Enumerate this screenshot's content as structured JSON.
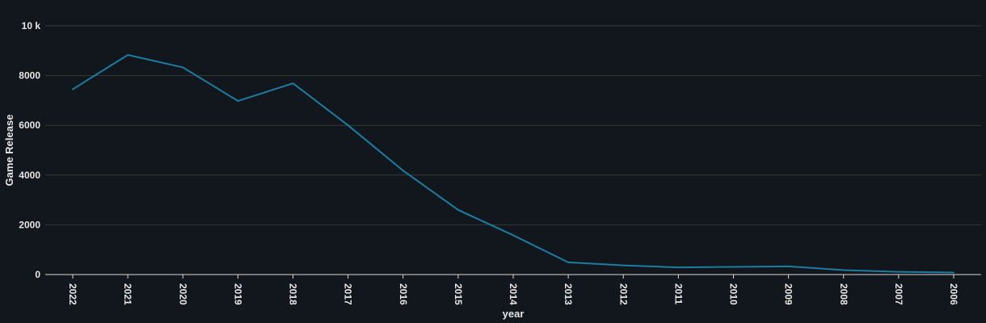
{
  "chart_data": {
    "type": "line",
    "x": [
      "2022",
      "2021",
      "2020",
      "2019",
      "2018",
      "2017",
      "2016",
      "2015",
      "2014",
      "2013",
      "2012",
      "2011",
      "2010",
      "2009",
      "2008",
      "2007",
      "2006"
    ],
    "series": [
      {
        "values": [
          7450,
          8830,
          8330,
          6980,
          7690,
          6000,
          4180,
          2600,
          1580,
          490,
          370,
          290,
          310,
          330,
          180,
          110,
          80
        ]
      }
    ],
    "xlabel": "year",
    "ylabel": "Game Release",
    "ylim": [
      0,
      10000
    ],
    "yticks": [
      {
        "value": 0,
        "label": "0"
      },
      {
        "value": 2000,
        "label": "2000"
      },
      {
        "value": 4000,
        "label": "4000"
      },
      {
        "value": 6000,
        "label": "6000"
      },
      {
        "value": 8000,
        "label": "8000"
      },
      {
        "value": 10000,
        "label": "10 k"
      }
    ],
    "grid": true,
    "legend": "none",
    "colors": {
      "background": "#12161d",
      "line": "#1b7ea1",
      "text": "#e6e6e6"
    }
  }
}
